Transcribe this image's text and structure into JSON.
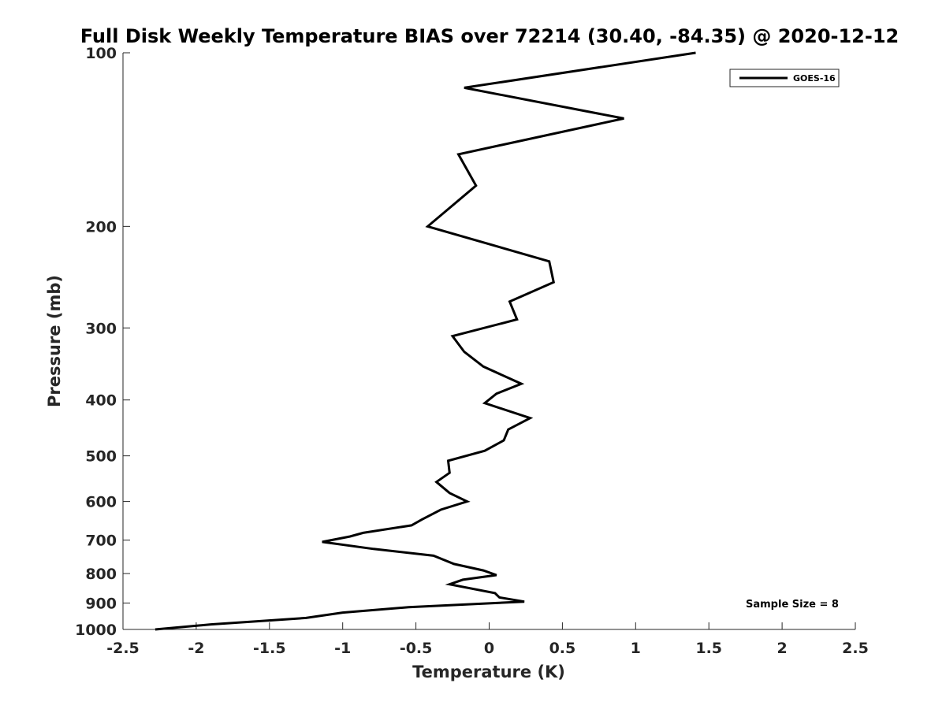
{
  "chart_data": {
    "type": "line",
    "title": "Full Disk Weekly Temperature BIAS over 72214 (30.40, -84.35) @ 2020-12-12",
    "xlabel": "Temperature (K)",
    "ylabel": "Pressure (mb)",
    "xlim": [
      -2.5,
      2.5
    ],
    "ylim": [
      100,
      1000
    ],
    "yscale": "log",
    "yreversed": true,
    "x_ticks": [
      "-2.5",
      "-2",
      "-1.5",
      "-1",
      "-0.5",
      "0",
      "0.5",
      "1",
      "1.5",
      "2",
      "2.5"
    ],
    "y_ticks": [
      "100",
      "200",
      "300",
      "400",
      "500",
      "600",
      "700",
      "800",
      "900",
      "1000"
    ],
    "grid": false,
    "legend_position": "top-right",
    "annotation": "Sample Size = 8",
    "series": [
      {
        "name": "GOES-16",
        "color": "#000000",
        "points": [
          {
            "x": 1.41,
            "y": 100
          },
          {
            "x": -0.17,
            "y": 115
          },
          {
            "x": 0.92,
            "y": 130
          },
          {
            "x": -0.21,
            "y": 150
          },
          {
            "x": -0.09,
            "y": 170
          },
          {
            "x": -0.42,
            "y": 200
          },
          {
            "x": 0.41,
            "y": 230
          },
          {
            "x": 0.44,
            "y": 250
          },
          {
            "x": 0.14,
            "y": 270
          },
          {
            "x": 0.19,
            "y": 290
          },
          {
            "x": -0.25,
            "y": 310
          },
          {
            "x": -0.17,
            "y": 330
          },
          {
            "x": -0.04,
            "y": 350
          },
          {
            "x": 0.22,
            "y": 375
          },
          {
            "x": 0.05,
            "y": 390
          },
          {
            "x": -0.03,
            "y": 405
          },
          {
            "x": 0.28,
            "y": 430
          },
          {
            "x": 0.13,
            "y": 450
          },
          {
            "x": 0.1,
            "y": 470
          },
          {
            "x": -0.03,
            "y": 490
          },
          {
            "x": -0.28,
            "y": 510
          },
          {
            "x": -0.27,
            "y": 535
          },
          {
            "x": -0.36,
            "y": 555
          },
          {
            "x": -0.27,
            "y": 580
          },
          {
            "x": -0.15,
            "y": 600
          },
          {
            "x": -0.33,
            "y": 620
          },
          {
            "x": -0.46,
            "y": 645
          },
          {
            "x": -0.53,
            "y": 660
          },
          {
            "x": -0.86,
            "y": 680
          },
          {
            "x": -0.95,
            "y": 690
          },
          {
            "x": -1.14,
            "y": 705
          },
          {
            "x": -0.79,
            "y": 725
          },
          {
            "x": -0.38,
            "y": 745
          },
          {
            "x": -0.24,
            "y": 770
          },
          {
            "x": -0.04,
            "y": 790
          },
          {
            "x": 0.05,
            "y": 805
          },
          {
            "x": -0.18,
            "y": 820
          },
          {
            "x": -0.27,
            "y": 835
          },
          {
            "x": 0.04,
            "y": 865
          },
          {
            "x": 0.07,
            "y": 880
          },
          {
            "x": 0.24,
            "y": 895
          },
          {
            "x": -0.55,
            "y": 915
          },
          {
            "x": -1.0,
            "y": 935
          },
          {
            "x": -1.25,
            "y": 955
          },
          {
            "x": -1.9,
            "y": 980
          },
          {
            "x": -2.28,
            "y": 1000
          }
        ]
      }
    ]
  }
}
